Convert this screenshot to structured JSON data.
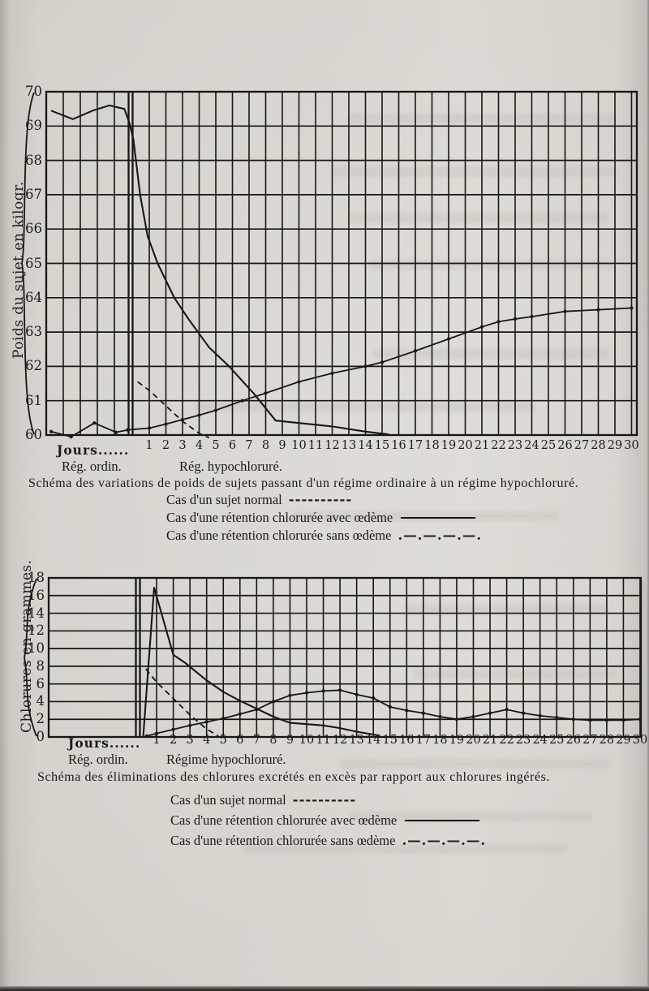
{
  "colors": {
    "paper": "#d6d3cd",
    "ink": "#1b1b1b"
  },
  "chart_data": [
    {
      "type": "line",
      "title": "Schéma des variations de poids de sujets passant d'un régime ordinaire à un régime hypochloruré.",
      "ylabel": "Poids du sujet en kilogr.",
      "xlabel": "Jours......",
      "ylim": [
        60,
        70
      ],
      "grid": "on",
      "y_ticks": [
        70,
        69,
        68,
        67,
        66,
        65,
        64,
        63,
        62,
        61,
        60
      ],
      "x_ticks": [
        1,
        2,
        3,
        4,
        5,
        6,
        7,
        8,
        9,
        10,
        11,
        12,
        13,
        14,
        15,
        16,
        17,
        18,
        19,
        20,
        21,
        22,
        23,
        24,
        25,
        26,
        27,
        28,
        29,
        30
      ],
      "x_sections": {
        "left": "Rég. ordin.",
        "right": "Rég. hypochloruré."
      },
      "legend": [
        {
          "label": "Cas d'un sujet normal",
          "style": "dashed",
          "sample": "----------"
        },
        {
          "label": "Cas d'une rétention chlorurée avec œdème",
          "style": "solid",
          "sample": ""
        },
        {
          "label": "Cas d'une rétention chlorurée sans œdème",
          "style": "dashdot",
          "sample": ".—.—.—.—."
        }
      ],
      "x_note": "day 0 = change from ordinary to hypochlorinated diet; negative days = ordinary diet",
      "series": [
        {
          "name": "Cas d'un sujet normal",
          "style": "dashed",
          "points": [
            [
              0.3,
              61.55
            ],
            [
              1,
              61.3
            ],
            [
              2,
              60.85
            ],
            [
              3,
              60.4
            ],
            [
              4,
              60.05
            ],
            [
              4.6,
              59.92
            ]
          ]
        },
        {
          "name": "Cas d'une rétention chlorurée avec œdème",
          "style": "solid",
          "points": [
            [
              -4.9,
              69.45
            ],
            [
              -3.6,
              69.2
            ],
            [
              -2.4,
              69.45
            ],
            [
              -1.4,
              69.6
            ],
            [
              -0.5,
              69.5
            ],
            [
              -0.2,
              69.1
            ],
            [
              0.05,
              68.6
            ],
            [
              0.45,
              67
            ],
            [
              0.9,
              65.8
            ],
            [
              1.5,
              65
            ],
            [
              2.5,
              64
            ],
            [
              3.4,
              63.35
            ],
            [
              4.6,
              62.55
            ],
            [
              5.8,
              62
            ],
            [
              7.3,
              61.2
            ],
            [
              8.6,
              60.42
            ],
            [
              10,
              60.35
            ],
            [
              12,
              60.25
            ],
            [
              14,
              60.1
            ],
            [
              15.4,
              60.02
            ]
          ]
        },
        {
          "name": "Cas d'une rétention chlorurée sans œdème",
          "style": "dashdot",
          "points": [
            [
              -4.9,
              60.1
            ],
            [
              -3.7,
              59.95
            ],
            [
              -2.3,
              60.35
            ],
            [
              -1,
              60.08
            ],
            [
              -0.3,
              60.15
            ],
            [
              1,
              60.2
            ],
            [
              2,
              60.32
            ],
            [
              3,
              60.45
            ],
            [
              4,
              60.58
            ],
            [
              5,
              60.72
            ],
            [
              6.6,
              61
            ],
            [
              8,
              61.22
            ],
            [
              10,
              61.55
            ],
            [
              12,
              61.8
            ],
            [
              14,
              62
            ],
            [
              15,
              62.12
            ],
            [
              17,
              62.45
            ],
            [
              19,
              62.8
            ],
            [
              21,
              63.15
            ],
            [
              22,
              63.3
            ],
            [
              23,
              63.38
            ],
            [
              24,
              63.45
            ],
            [
              26,
              63.6
            ],
            [
              28,
              63.65
            ],
            [
              30,
              63.7
            ]
          ]
        }
      ]
    },
    {
      "type": "line",
      "title": "Schéma des éliminations des chlorures excrétés en excès par rapport aux chlorures ingérés.",
      "ylabel": "Chlorures en grammes.",
      "xlabel": "Jours......",
      "ylim": [
        0,
        18
      ],
      "grid": "on",
      "y_ticks": [
        18,
        16,
        14,
        12,
        10,
        8,
        6,
        4,
        2,
        0
      ],
      "x_ticks": [
        1,
        2,
        3,
        4,
        5,
        6,
        7,
        8,
        9,
        10,
        11,
        12,
        13,
        14,
        15,
        16,
        17,
        18,
        19,
        20,
        21,
        22,
        23,
        24,
        25,
        26,
        27,
        28,
        29,
        30
      ],
      "x_sections": {
        "left": "Rég. ordin.",
        "right": "Régime hypochloruré."
      },
      "legend": [
        {
          "label": "Cas d'un sujet normal",
          "style": "dashed",
          "sample": "----------"
        },
        {
          "label": "Cas d'une rétention chlorurée avec œdème",
          "style": "solid",
          "sample": ""
        },
        {
          "label": "Cas d'une rétention chlorurée sans œdème",
          "style": "dashdot",
          "sample": ".—.—.—.—."
        }
      ],
      "x_note": "day 0 = change to hypochlorinated diet",
      "series": [
        {
          "name": "Cas d'un sujet normal",
          "style": "dashed",
          "points": [
            [
              0.35,
              7.7
            ],
            [
              1,
              6.2
            ],
            [
              2,
              4.35
            ],
            [
              3,
              2.5
            ],
            [
              4,
              0.9
            ],
            [
              4.7,
              0.1
            ]
          ]
        },
        {
          "name": "Cas d'une rétention chlorurée avec œdème",
          "style": "solid",
          "points": [
            [
              0.2,
              0.1
            ],
            [
              0.85,
              16.9
            ],
            [
              2,
              9.3
            ],
            [
              2.7,
              8.4
            ],
            [
              4,
              6.4
            ],
            [
              5,
              5.1
            ],
            [
              6,
              4.1
            ],
            [
              7,
              3.2
            ],
            [
              8,
              2.3
            ],
            [
              9,
              1.6
            ],
            [
              10,
              1.45
            ],
            [
              11,
              1.3
            ],
            [
              12,
              1
            ],
            [
              13,
              0.6
            ],
            [
              14.4,
              0.15
            ]
          ]
        },
        {
          "name": "Cas d'une rétention chlorurée sans œdème",
          "style": "dashdot",
          "points": [
            [
              0.4,
              0.1
            ],
            [
              1,
              0.4
            ],
            [
              2,
              0.85
            ],
            [
              3,
              1.3
            ],
            [
              4,
              1.7
            ],
            [
              5,
              2.1
            ],
            [
              6,
              2.6
            ],
            [
              7,
              3.1
            ],
            [
              8,
              4
            ],
            [
              9,
              4.7
            ],
            [
              10,
              5
            ],
            [
              11,
              5.2
            ],
            [
              12,
              5.3
            ],
            [
              13,
              4.8
            ],
            [
              14,
              4.4
            ],
            [
              15,
              3.4
            ],
            [
              16,
              3
            ],
            [
              17,
              2.7
            ],
            [
              18,
              2.3
            ],
            [
              19,
              2
            ],
            [
              20,
              2.3
            ],
            [
              21,
              2.7
            ],
            [
              22,
              3.1
            ],
            [
              23,
              2.7
            ],
            [
              24,
              2.4
            ],
            [
              25,
              2.2
            ],
            [
              26,
              2
            ],
            [
              27,
              1.9
            ],
            [
              28,
              1.9
            ],
            [
              29,
              1.9
            ],
            [
              30,
              2
            ]
          ]
        }
      ]
    }
  ]
}
